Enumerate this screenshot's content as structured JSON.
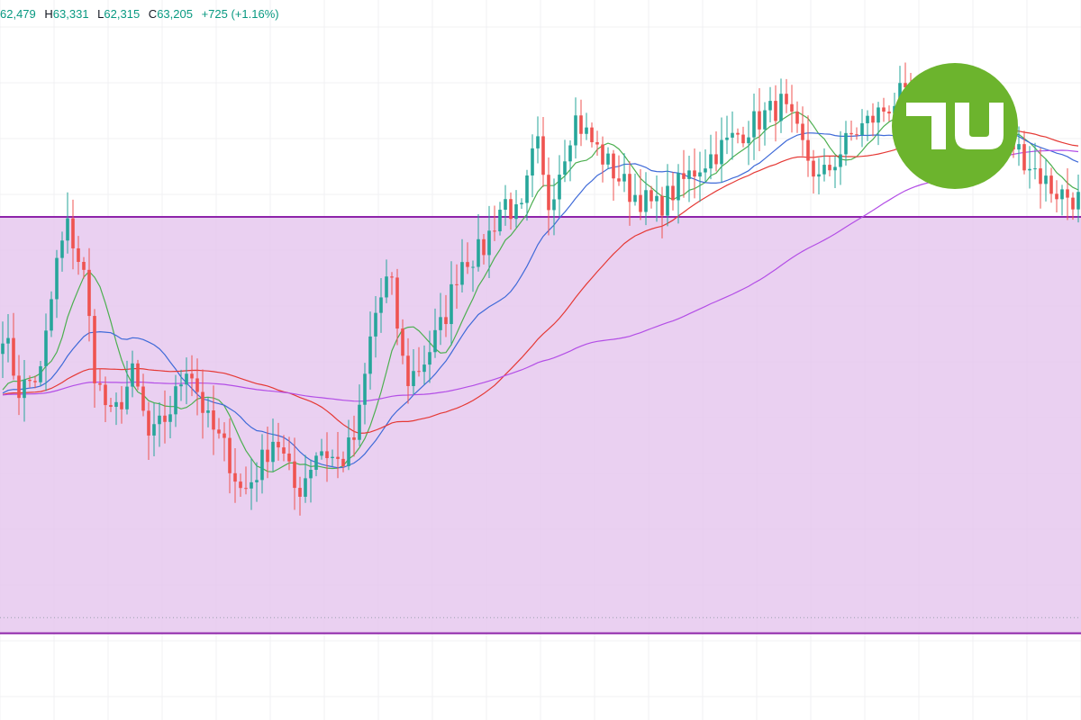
{
  "ohlc_legend": {
    "open_value": "62,479",
    "high_key": "H",
    "high_value": "63,331",
    "low_key": "L",
    "low_value": "62,315",
    "close_key": "C",
    "close_value": "63,205",
    "change": "+725 (+1.16%)"
  },
  "logo": {
    "icon": "tu-brand-logo",
    "text": "TU",
    "bg_color": "#6cb42d",
    "fg_color": "#ffffff"
  },
  "colors": {
    "up": "#26a69a",
    "down": "#ef5350",
    "ma_fast": "#4caf50",
    "ma_mid": "#3f6ad8",
    "ma_slow": "#e53935",
    "ma_long": "#b34ee6",
    "zone_fill": "#e6c8ee",
    "zone_line": "#8e24aa",
    "grid": "#f0f0f3"
  },
  "chart_data": {
    "type": "candlestick",
    "grid": true,
    "y_range": [
      56000,
      64300
    ],
    "zone": {
      "upper": 61800,
      "lower": 57000,
      "dotted_level": 57180
    },
    "candle_count": 200,
    "anchors": [
      [
        0,
        60500
      ],
      [
        6,
        59800
      ],
      [
        14,
        60000
      ],
      [
        20,
        61300
      ],
      [
        24,
        61700
      ],
      [
        30,
        61100
      ],
      [
        34,
        59950
      ],
      [
        40,
        59450
      ],
      [
        48,
        60000
      ],
      [
        54,
        59200
      ],
      [
        62,
        59600
      ],
      [
        68,
        60150
      ],
      [
        75,
        59450
      ],
      [
        82,
        59100
      ],
      [
        88,
        58600
      ],
      [
        94,
        58900
      ],
      [
        100,
        59300
      ],
      [
        108,
        58600
      ],
      [
        116,
        59150
      ],
      [
        124,
        58950
      ],
      [
        130,
        59300
      ],
      [
        136,
        60600
      ],
      [
        142,
        61150
      ],
      [
        148,
        59900
      ],
      [
        154,
        60100
      ],
      [
        162,
        60600
      ],
      [
        168,
        61300
      ],
      [
        176,
        61400
      ],
      [
        184,
        62000
      ],
      [
        190,
        61750
      ],
      [
        196,
        62700
      ],
      [
        200,
        61900
      ],
      [
        210,
        62950
      ],
      [
        220,
        62500
      ],
      [
        230,
        62100
      ],
      [
        240,
        61900
      ],
      [
        256,
        62400
      ],
      [
        272,
        62800
      ],
      [
        286,
        63100
      ],
      [
        300,
        62200
      ],
      [
        312,
        62750
      ],
      [
        330,
        63200
      ],
      [
        348,
        62400
      ],
      [
        360,
        62900
      ],
      [
        372,
        62600
      ],
      [
        386,
        62100
      ],
      [
        395,
        62000
      ]
    ],
    "moving_averages": [
      {
        "id": "ma-fast",
        "period": 9
      },
      {
        "id": "ma-mid",
        "period": 21
      },
      {
        "id": "ma-slow",
        "period": 50
      },
      {
        "id": "ma-long",
        "period": 100
      }
    ]
  }
}
